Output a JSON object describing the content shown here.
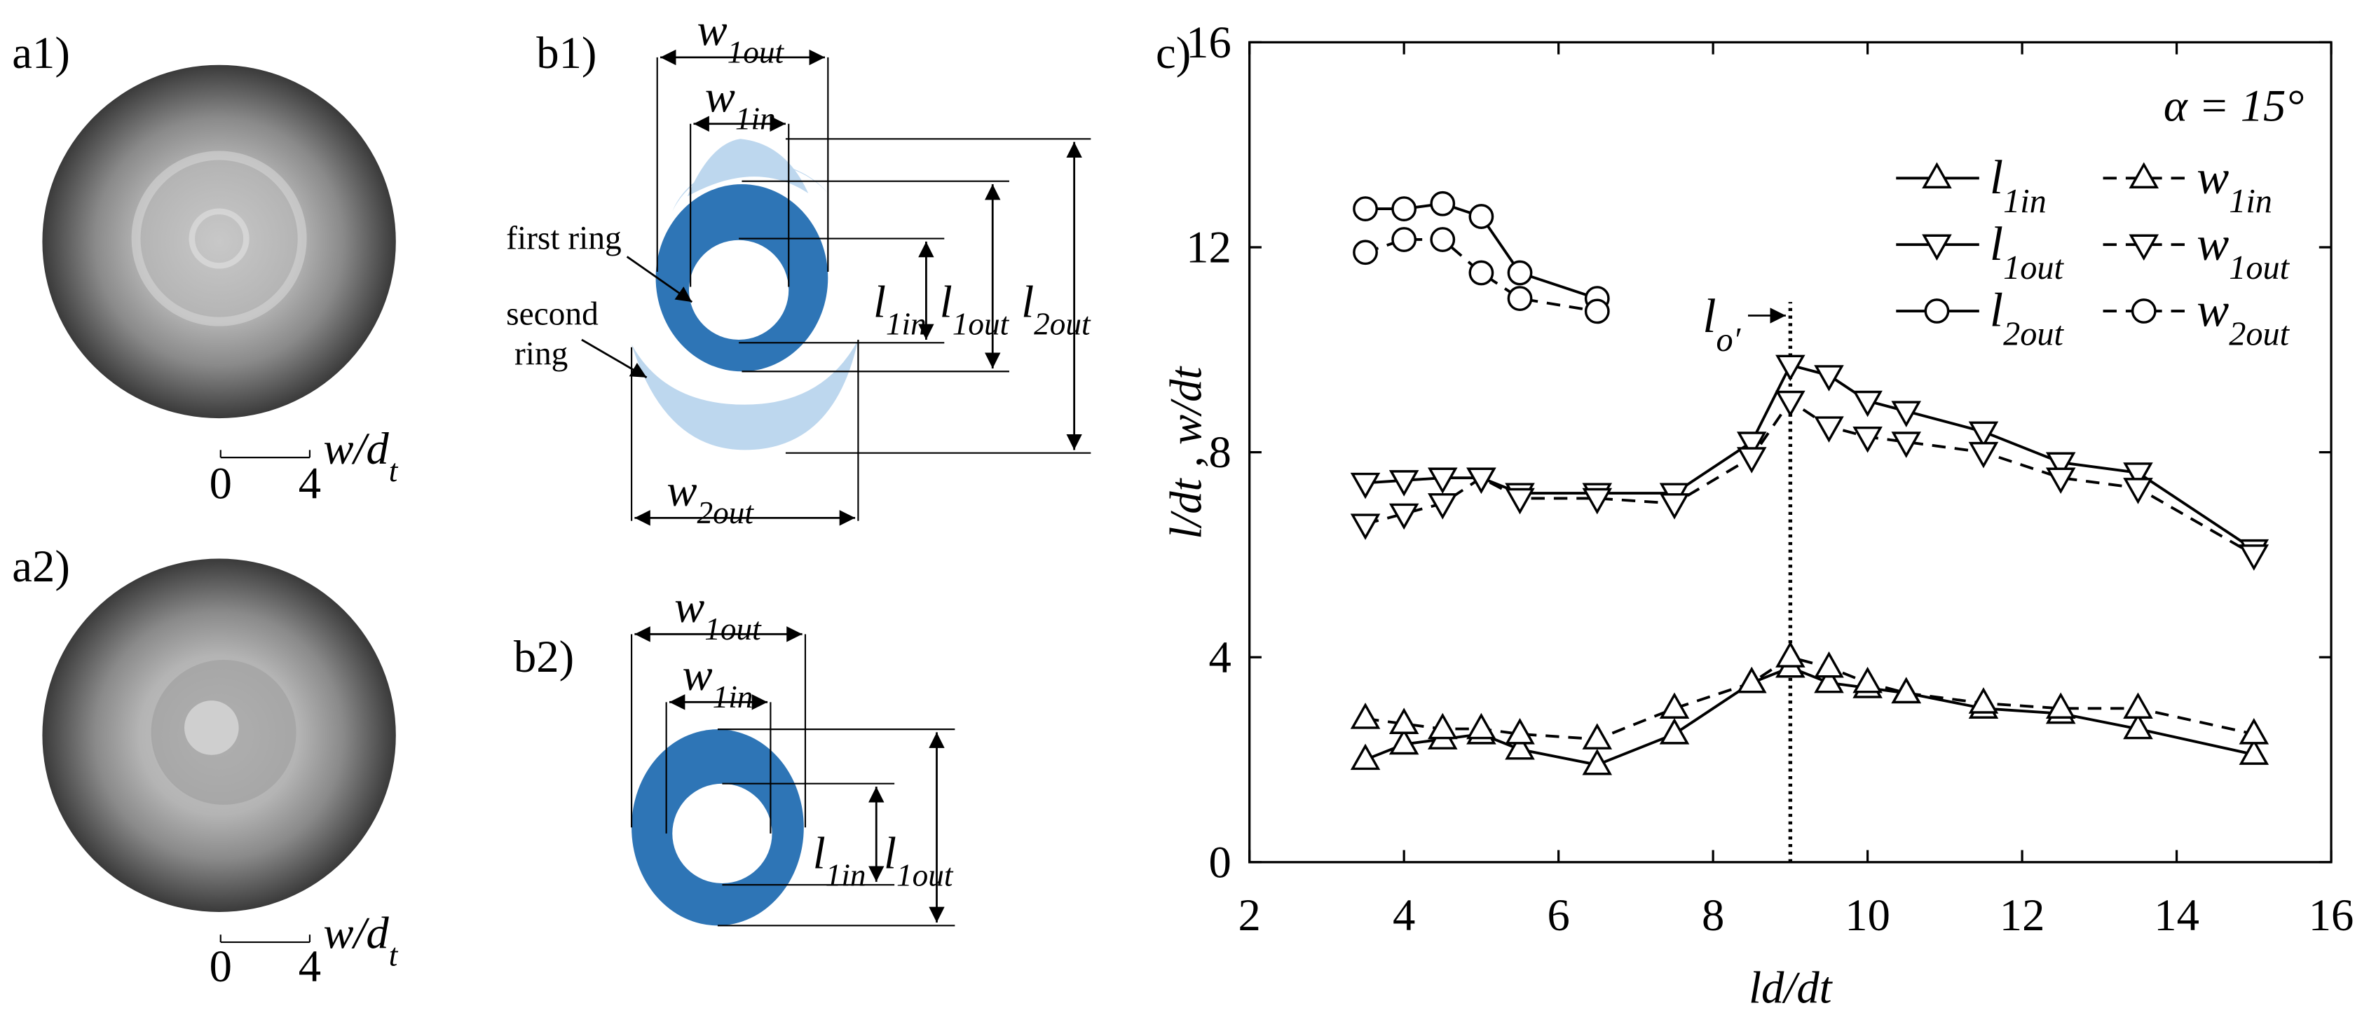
{
  "panels": {
    "a1": "a1)",
    "a2": "a2)",
    "b1": "b1)",
    "b2": "b2)"
  },
  "a1_scale": {
    "min": 0,
    "max": 4,
    "label": "w/dt"
  },
  "a2_scale": {
    "min": 0,
    "max": 4,
    "label": "w/dt"
  },
  "b1": {
    "w1out": "w1out",
    "w1in": "w1in",
    "l1in": "l1in",
    "l1out": "l1out",
    "l2out": "l2out",
    "w2out": "w2out",
    "first": "first ring",
    "second": "second ring"
  },
  "b2": {
    "w1out": "w1out",
    "w1in": "w1in",
    "l1in": "l1in",
    "l1out": "l1out"
  },
  "chart_data": {
    "type": "line",
    "panel_label": "c)",
    "annotation": "α = 15°",
    "vline": {
      "x": 9,
      "label": "lo′"
    },
    "xlabel": "ld/dt",
    "ylabel": "l/dt , w/dt",
    "xlim": [
      2,
      16
    ],
    "xticks": [
      2,
      4,
      6,
      8,
      10,
      12,
      14,
      16
    ],
    "ylim": [
      0,
      16
    ],
    "yticks": [
      0,
      4,
      8,
      12,
      16
    ],
    "series": [
      {
        "name": "l1in",
        "color": "#000000",
        "marker": "triangle-up",
        "dashed": false,
        "x": [
          3.5,
          4,
          4.5,
          5,
          5.5,
          6.5,
          7.5,
          8.5,
          9,
          9.5,
          10,
          10.5,
          11.5,
          12.5,
          13.5,
          15
        ],
        "values": [
          2.0,
          2.3,
          2.4,
          2.5,
          2.2,
          1.9,
          2.5,
          3.5,
          3.8,
          3.5,
          3.4,
          3.3,
          3.0,
          2.9,
          2.6,
          2.1
        ]
      },
      {
        "name": "w1in",
        "color": "#000000",
        "marker": "triangle-up",
        "dashed": true,
        "x": [
          3.5,
          4,
          4.5,
          5,
          5.5,
          6.5,
          7.5,
          8.5,
          9,
          9.5,
          10,
          10.5,
          11.5,
          12.5,
          13.5,
          15
        ],
        "values": [
          2.8,
          2.7,
          2.6,
          2.6,
          2.5,
          2.4,
          3.0,
          3.5,
          4.0,
          3.8,
          3.5,
          3.3,
          3.1,
          3.0,
          3.0,
          2.5
        ]
      },
      {
        "name": "l1out",
        "color": "#000000",
        "marker": "triangle-down",
        "dashed": false,
        "x": [
          3.5,
          4,
          4.5,
          5,
          5.5,
          6.5,
          7.5,
          8.5,
          9,
          9.5,
          10,
          10.5,
          11.5,
          12.5,
          13.5,
          15
        ],
        "values": [
          7.4,
          7.45,
          7.5,
          7.5,
          7.2,
          7.2,
          7.2,
          8.2,
          9.7,
          9.5,
          9.0,
          8.8,
          8.4,
          7.8,
          7.6,
          6.1
        ]
      },
      {
        "name": "w1out",
        "color": "#000000",
        "marker": "triangle-down",
        "dashed": true,
        "x": [
          3.5,
          4,
          4.5,
          5,
          5.5,
          6.5,
          7.5,
          8.5,
          9,
          9.5,
          10,
          10.5,
          11.5,
          12.5,
          13.5,
          15
        ],
        "values": [
          6.6,
          6.8,
          7.0,
          7.5,
          7.1,
          7.1,
          7.0,
          7.9,
          9.0,
          8.5,
          8.3,
          8.2,
          8.0,
          7.5,
          7.3,
          6.0
        ]
      },
      {
        "name": "l2out",
        "color": "#000000",
        "marker": "circle",
        "dashed": false,
        "x": [
          3.5,
          4,
          4.5,
          5,
          5.5,
          6.5
        ],
        "values": [
          12.75,
          12.75,
          12.85,
          12.6,
          11.5,
          11.0
        ]
      },
      {
        "name": "w2out",
        "color": "#000000",
        "marker": "circle",
        "dashed": true,
        "x": [
          3.5,
          4,
          4.5,
          5,
          5.5,
          6.5
        ],
        "values": [
          11.9,
          12.15,
          12.15,
          11.5,
          11.0,
          10.75
        ]
      }
    ]
  }
}
